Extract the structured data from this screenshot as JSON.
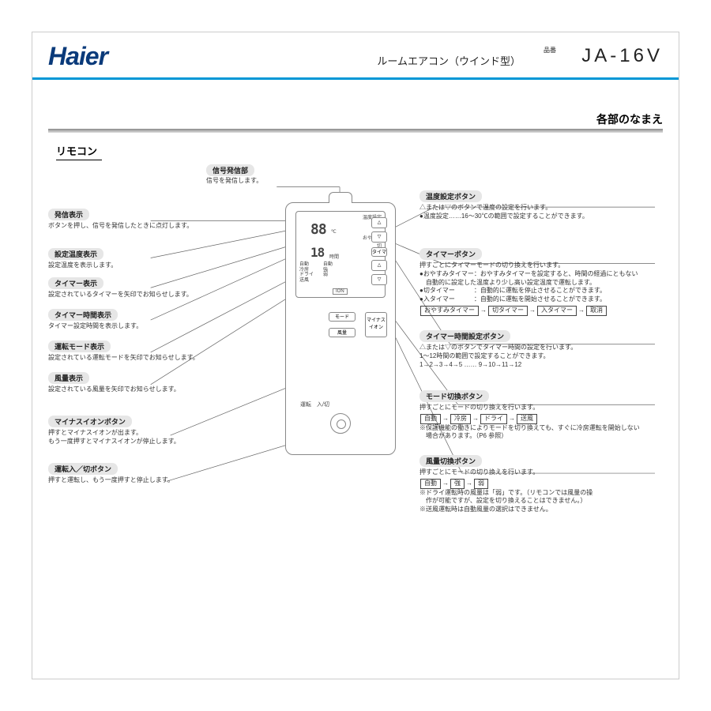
{
  "header": {
    "brand": "Haier",
    "product": "ルームエアコン（ウインド型）",
    "part_no_label": "品番",
    "part_no": "JA-16V"
  },
  "section_title": "各部のなまえ",
  "subtitle": "リモコン",
  "remote_lcd": {
    "temp_set_lbl": "温度設定",
    "temp_val": "88",
    "temp_unit": "℃",
    "timer_val": "18",
    "timer_unit": "時間",
    "sleep": "おやすみ",
    "off": "切",
    "on": "入",
    "modes": "自動\n冷房\nドライ\n送風",
    "fans": "自動\n強\n弱",
    "ion": "ION"
  },
  "remote_buttons": {
    "temp_up": "△",
    "temp_down": "▽",
    "timer": "タイマー",
    "time_up": "△",
    "time_down": "▽",
    "mode": "モード",
    "fan": "風量",
    "ion": "マイナス\nイオン",
    "power_lbl": "運転　入/切"
  },
  "callouts_top": [
    {
      "title": "信号発信部",
      "desc": [
        "信号を発信します。"
      ]
    }
  ],
  "callouts_left": [
    {
      "title": "発信表示",
      "desc": [
        "ボタンを押し、信号を発信したときに点灯します。"
      ]
    },
    {
      "title": "設定温度表示",
      "desc": [
        "設定温度を表示します。"
      ]
    },
    {
      "title": "タイマー表示",
      "desc": [
        "設定されているタイマーを矢印でお知らせします。"
      ]
    },
    {
      "title": "タイマー時間表示",
      "desc": [
        "タイマー設定時間を表示します。"
      ]
    },
    {
      "title": "運転モード表示",
      "desc": [
        "設定されている運転モードを矢印でお知らせします。"
      ]
    },
    {
      "title": "風量表示",
      "desc": [
        "設定されている風量を矢印でお知らせします。"
      ]
    },
    {
      "title": "マイナスイオンボタン",
      "desc": [
        "押すとマイナスイオンが出ます。",
        "もう一度押すとマイナスイオンが停止します。"
      ]
    },
    {
      "title": "運転入／切ボタン",
      "desc": [
        "押すと運転し、もう一度押すと停止します。"
      ]
    }
  ],
  "callouts_right": [
    {
      "title": "温度設定ボタン",
      "desc": [
        "△または▽のボタンで温度の設定を行います。",
        "●温度設定……16～30℃の範囲で設定することができます。"
      ]
    },
    {
      "title": "タイマーボタン",
      "desc": [
        "押すごとにタイマーモードの切り換えを行います。",
        "●おやすみタイマー：おやすみタイマーを設定すると、時間の経過にともない",
        "　自動的に設定した温度より少し高い設定温度で運転します。",
        "●切タイマー　　　：自動的に運転を停止させることができます。",
        "●入タイマー　　　：自動的に運転を開始させることができます。"
      ],
      "seq": [
        "おやすみタイマー",
        "切タイマー",
        "入タイマー",
        "取消"
      ]
    },
    {
      "title": "タイマー時間設定ボタン",
      "desc": [
        "△または▽のボタンでタイマー時間の設定を行います。",
        "1～12時間の範囲で設定することができます。",
        "1→2→3→4→5 …… 9→10→11→12"
      ]
    },
    {
      "title": "モード切換ボタン",
      "desc": [
        "押すごとにモードの切り換えを行います。"
      ],
      "seq": [
        "自動",
        "冷房",
        "ドライ",
        "送風"
      ],
      "post": [
        "※保護機能の働きによりモードを切り換えても、すぐに冷房運転を開始しない",
        "　場合があります。（P6 参照）"
      ]
    },
    {
      "title": "風量切換ボタン",
      "desc": [
        "押すごとにモードの切り換えを行います。"
      ],
      "seq": [
        "自動",
        "強",
        "弱"
      ],
      "post": [
        "※ドライ運転時の風量は「弱」です。（リモコンでは風量の操",
        "　作が可能ですが、設定を切り換えることはできません。）",
        "※送風運転時は自動風量の選択はできません。"
      ]
    }
  ],
  "colors": {
    "accent": "#0097d6",
    "brand": "#0a3a7a",
    "pill": "#e6e6e6"
  }
}
